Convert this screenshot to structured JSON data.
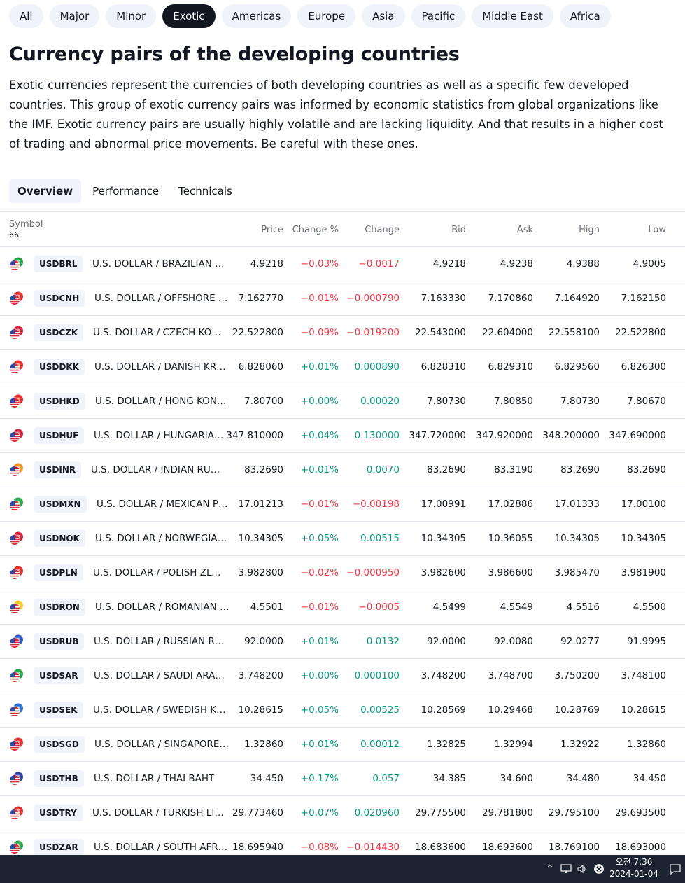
{
  "filters": [
    "All",
    "Major",
    "Minor",
    "Exotic",
    "Americas",
    "Europe",
    "Asia",
    "Pacific",
    "Middle East",
    "Africa"
  ],
  "active_filter": "Exotic",
  "page_title": "Currency pairs of the developing countries",
  "description": "Exotic currencies represent the currencies of both developing countries as well as a specific few developed countries. This group of exotic currency pairs was informed by economic statistics from global organizations like the IMF. Exotic currency pairs are usually highly volatile and are lacking liquidity. And that results in a higher cost of trading and abnormal price movements. Be careful with these ones.",
  "tabs": [
    "Overview",
    "Performance",
    "Technicals"
  ],
  "active_tab": "Overview",
  "table": {
    "headers": {
      "symbol": "Symbol",
      "count": "66",
      "price": "Price",
      "change_pct": "Change %",
      "change": "Change",
      "bid": "Bid",
      "ask": "Ask",
      "high": "High",
      "low": "Low"
    },
    "rows": [
      {
        "ticker": "USDBRL",
        "name": "U.S. DOLLAR / BRAZILIAN R...",
        "price": "4.9218",
        "pct": "−0.03%",
        "chg": "−0.0017",
        "bid": "4.9218",
        "ask": "4.9238",
        "high": "4.9388",
        "low": "4.9005",
        "dir": "neg",
        "flag": "#2aa84a"
      },
      {
        "ticker": "USDCNH",
        "name": "U.S. DOLLAR / OFFSHORE C...",
        "price": "7.162770",
        "pct": "−0.01%",
        "chg": "−0.000790",
        "bid": "7.163330",
        "ask": "7.170860",
        "high": "7.164920",
        "low": "7.162150",
        "dir": "neg",
        "flag": "#e8312e"
      },
      {
        "ticker": "USDCZK",
        "name": "U.S. DOLLAR / CZECH KORU...",
        "price": "22.522800",
        "pct": "−0.09%",
        "chg": "−0.019200",
        "bid": "22.543000",
        "ask": "22.604000",
        "high": "22.558100",
        "low": "22.522800",
        "dir": "neg",
        "flag": "#d7263d"
      },
      {
        "ticker": "USDDKK",
        "name": "U.S. DOLLAR / DANISH KRONE",
        "price": "6.828060",
        "pct": "+0.01%",
        "chg": "0.000890",
        "bid": "6.828310",
        "ask": "6.829310",
        "high": "6.829560",
        "low": "6.826300",
        "dir": "pos",
        "flag": "#e8312e"
      },
      {
        "ticker": "USDHKD",
        "name": "U.S. DOLLAR / HONG KONG ...",
        "price": "7.80700",
        "pct": "+0.00%",
        "chg": "0.00020",
        "bid": "7.80730",
        "ask": "7.80850",
        "high": "7.80730",
        "low": "7.80670",
        "dir": "pos",
        "flag": "#e8312e"
      },
      {
        "ticker": "USDHUF",
        "name": "U.S. DOLLAR / HUNGARIAN ...",
        "price": "347.810000",
        "pct": "+0.04%",
        "chg": "0.130000",
        "bid": "347.720000",
        "ask": "347.920000",
        "high": "348.200000",
        "low": "347.690000",
        "dir": "pos",
        "flag": "#d7263d"
      },
      {
        "ticker": "USDINR",
        "name": "U.S. DOLLAR / INDIAN RUPEE",
        "price": "83.2690",
        "pct": "+0.01%",
        "chg": "0.0070",
        "bid": "83.2690",
        "ask": "83.3190",
        "high": "83.2690",
        "low": "83.2690",
        "dir": "pos",
        "flag": "#f39a2b"
      },
      {
        "ticker": "USDMXN",
        "name": "U.S. DOLLAR / MEXICAN PESO",
        "price": "17.01213",
        "pct": "−0.01%",
        "chg": "−0.00198",
        "bid": "17.00991",
        "ask": "17.02886",
        "high": "17.01333",
        "low": "17.00100",
        "dir": "neg",
        "flag": "#2aa84a"
      },
      {
        "ticker": "USDNOK",
        "name": "U.S. DOLLAR / NORWEGIAN ...",
        "price": "10.34305",
        "pct": "+0.05%",
        "chg": "0.00515",
        "bid": "10.34305",
        "ask": "10.36055",
        "high": "10.34305",
        "low": "10.34305",
        "dir": "pos",
        "flag": "#d7263d"
      },
      {
        "ticker": "USDPLN",
        "name": "U.S. DOLLAR / POLISH ZLOTY",
        "price": "3.982800",
        "pct": "−0.02%",
        "chg": "−0.000950",
        "bid": "3.982600",
        "ask": "3.986600",
        "high": "3.985470",
        "low": "3.981900",
        "dir": "neg",
        "flag": "#e8312e"
      },
      {
        "ticker": "USDRON",
        "name": "U.S. DOLLAR / ROMANIAN L...",
        "price": "4.5501",
        "pct": "−0.01%",
        "chg": "−0.0005",
        "bid": "4.5499",
        "ask": "4.5549",
        "high": "4.5516",
        "low": "4.5500",
        "dir": "neg",
        "flag": "#f6c92d"
      },
      {
        "ticker": "USDRUB",
        "name": "U.S. DOLLAR / RUSSIAN RUB...",
        "price": "92.0000",
        "pct": "+0.01%",
        "chg": "0.0132",
        "bid": "92.0000",
        "ask": "92.0080",
        "high": "92.0277",
        "low": "91.9995",
        "dir": "pos",
        "flag": "#2c5cc5"
      },
      {
        "ticker": "USDSAR",
        "name": "U.S. DOLLAR / SAUDI ARABI...",
        "price": "3.748200",
        "pct": "+0.00%",
        "chg": "0.000100",
        "bid": "3.748200",
        "ask": "3.748700",
        "high": "3.750200",
        "low": "3.748100",
        "dir": "pos",
        "flag": "#2aa84a"
      },
      {
        "ticker": "USDSEK",
        "name": "U.S. DOLLAR / SWEDISH KRO...",
        "price": "10.28615",
        "pct": "+0.05%",
        "chg": "0.00525",
        "bid": "10.28569",
        "ask": "10.29468",
        "high": "10.28769",
        "low": "10.28615",
        "dir": "pos",
        "flag": "#2c6fd1"
      },
      {
        "ticker": "USDSGD",
        "name": "U.S. DOLLAR / SINGAPORE D...",
        "price": "1.32860",
        "pct": "+0.01%",
        "chg": "0.00012",
        "bid": "1.32825",
        "ask": "1.32994",
        "high": "1.32922",
        "low": "1.32860",
        "dir": "pos",
        "flag": "#e8312e"
      },
      {
        "ticker": "USDTHB",
        "name": "U.S. DOLLAR / THAI BAHT",
        "price": "34.450",
        "pct": "+0.17%",
        "chg": "0.057",
        "bid": "34.385",
        "ask": "34.600",
        "high": "34.480",
        "low": "34.450",
        "dir": "pos",
        "flag": "#2c4aa8"
      },
      {
        "ticker": "USDTRY",
        "name": "U.S. DOLLAR / TURKISH LIRA",
        "price": "29.773460",
        "pct": "+0.07%",
        "chg": "0.020960",
        "bid": "29.775500",
        "ask": "29.781800",
        "high": "29.795100",
        "low": "29.693500",
        "dir": "pos",
        "flag": "#e8312e"
      },
      {
        "ticker": "USDZAR",
        "name": "U.S. DOLLAR / SOUTH AFRIC...",
        "price": "18.695940",
        "pct": "−0.08%",
        "chg": "−0.014430",
        "bid": "18.683600",
        "ask": "18.693600",
        "high": "18.769100",
        "low": "18.693000",
        "dir": "neg",
        "flag": "#2aa84a"
      }
    ]
  },
  "taskbar": {
    "time": "오전 7:36",
    "date": "2024-01-04"
  },
  "colors": {
    "positive": "#089981",
    "negative": "#f23645",
    "pill_bg": "#f0f3fa",
    "pill_active_bg": "#131722",
    "taskbar_bg": "#1c2431"
  }
}
